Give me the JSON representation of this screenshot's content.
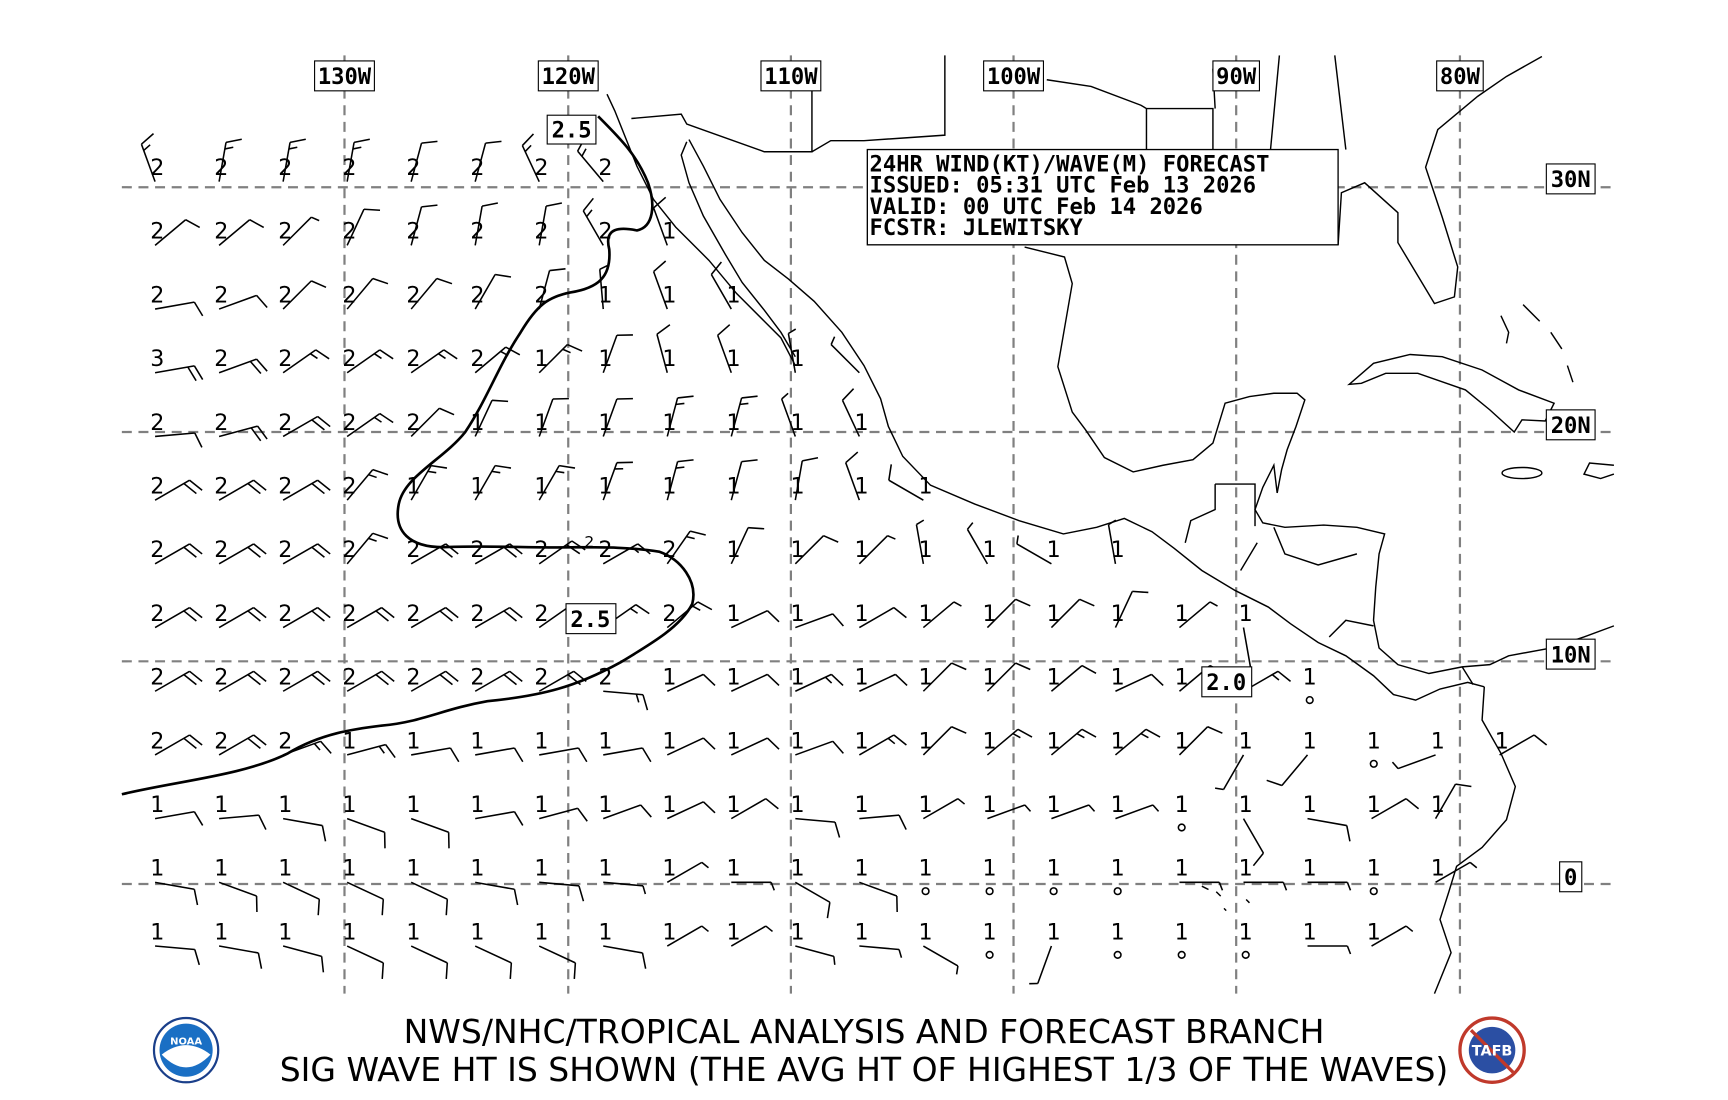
{
  "title_box": {
    "line1": "24HR WIND(KT)/WAVE(M) FORECAST",
    "line2": "ISSUED: 05:31 UTC Feb 13 2026",
    "line3": "VALID: 00 UTC Feb 14 2026",
    "line4": "FCSTR: JLEWITSKY"
  },
  "longitude_labels": [
    "130W",
    "120W",
    "110W",
    "100W",
    "90W",
    "80W"
  ],
  "latitude_labels": [
    "30N",
    "20N",
    "10N",
    "0"
  ],
  "contour_labels": [
    "2.5",
    "2.5",
    "2.0"
  ],
  "contour_small_label": "2",
  "footer": {
    "line1": "NWS/NHC/TROPICAL ANALYSIS AND FORECAST BRANCH",
    "line2": "SIG WAVE HT IS SHOWN (THE AVG HT OF HIGHEST 1/3 OF THE WAVES)"
  },
  "logos": {
    "left": "NOAA",
    "right": "TAFB"
  },
  "colors": {
    "grid": "#808080",
    "land": "#000000",
    "text": "#000000",
    "noaa_blue": "#1a6fc4",
    "tafb_red": "#c0392b"
  },
  "units": {
    "wind": "kt",
    "wave": "m"
  },
  "wave_heights": [
    [
      2,
      2,
      2,
      2,
      2,
      2,
      2,
      2
    ],
    [
      2,
      2,
      2,
      2,
      2,
      2,
      2,
      2,
      1
    ],
    [
      2,
      2,
      2,
      2,
      2,
      2,
      2,
      1,
      1,
      1
    ],
    [
      3,
      2,
      2,
      2,
      2,
      2,
      1,
      1,
      1,
      1,
      1
    ],
    [
      2,
      2,
      2,
      2,
      2,
      1,
      1,
      1,
      1,
      1,
      1,
      1
    ],
    [
      2,
      2,
      2,
      2,
      1,
      1,
      1,
      1,
      1,
      1,
      1,
      1,
      1
    ],
    [
      2,
      2,
      2,
      2,
      2,
      2,
      2,
      2,
      2,
      1,
      1,
      1,
      1,
      1,
      1,
      1
    ],
    [
      2,
      2,
      2,
      2,
      2,
      2,
      2,
      null,
      2,
      1,
      1,
      1,
      1,
      1,
      1,
      1,
      1,
      1
    ],
    [
      2,
      2,
      2,
      2,
      2,
      2,
      2,
      2,
      1,
      1,
      1,
      1,
      1,
      1,
      1,
      1,
      1,
      null,
      1
    ],
    [
      2,
      2,
      2,
      1,
      1,
      1,
      1,
      1,
      1,
      1,
      1,
      1,
      1,
      1,
      1,
      1,
      1,
      1,
      1,
      1,
      1,
      1
    ],
    [
      1,
      1,
      1,
      1,
      1,
      1,
      1,
      1,
      1,
      1,
      1,
      1,
      1,
      1,
      1,
      1,
      1,
      1,
      1,
      1,
      1
    ],
    [
      1,
      1,
      1,
      1,
      1,
      1,
      1,
      1,
      1,
      1,
      1,
      1,
      1,
      1,
      1,
      1,
      1,
      1,
      1,
      1,
      1
    ],
    [
      1,
      1,
      1,
      1,
      1,
      1,
      1,
      1,
      1,
      1,
      1,
      1,
      1,
      1,
      1,
      1,
      1,
      1,
      1,
      1
    ]
  ],
  "wind_barbs": [
    [
      [
        340,
        15
      ],
      [
        10,
        15
      ],
      [
        10,
        15
      ],
      [
        10,
        15
      ],
      [
        15,
        10
      ],
      [
        15,
        10
      ],
      [
        335,
        15
      ],
      [
        320,
        15
      ]
    ],
    [
      [
        50,
        10
      ],
      [
        50,
        10
      ],
      [
        45,
        5
      ],
      [
        25,
        10
      ],
      [
        15,
        10
      ],
      [
        10,
        10
      ],
      [
        10,
        10
      ],
      [
        330,
        15
      ],
      [
        340,
        10
      ]
    ],
    [
      [
        80,
        10
      ],
      [
        70,
        10
      ],
      [
        45,
        10
      ],
      [
        40,
        10
      ],
      [
        40,
        10
      ],
      [
        30,
        10
      ],
      [
        15,
        10
      ],
      [
        355,
        5
      ],
      [
        340,
        10
      ],
      [
        330,
        10
      ]
    ],
    [
      [
        80,
        20
      ],
      [
        70,
        20
      ],
      [
        55,
        15
      ],
      [
        55,
        15
      ],
      [
        55,
        15
      ],
      [
        50,
        15
      ],
      [
        45,
        15
      ],
      [
        20,
        10
      ],
      [
        345,
        10
      ],
      [
        340,
        10
      ],
      [
        350,
        5
      ],
      [
        315,
        5
      ]
    ],
    [
      [
        85,
        10
      ],
      [
        75,
        20
      ],
      [
        60,
        20
      ],
      [
        55,
        15
      ],
      [
        45,
        10
      ],
      [
        25,
        10
      ],
      [
        20,
        10
      ],
      [
        20,
        10
      ],
      [
        15,
        15
      ],
      [
        15,
        15
      ],
      [
        340,
        5
      ],
      [
        335,
        10
      ]
    ],
    [
      [
        60,
        20
      ],
      [
        60,
        20
      ],
      [
        60,
        20
      ],
      [
        40,
        15
      ],
      [
        30,
        15
      ],
      [
        30,
        15
      ],
      [
        30,
        15
      ],
      [
        20,
        15
      ],
      [
        15,
        15
      ],
      [
        15,
        10
      ],
      [
        10,
        10
      ],
      [
        340,
        10
      ],
      [
        300,
        10
      ]
    ],
    [
      [
        60,
        20
      ],
      [
        60,
        20
      ],
      [
        60,
        20
      ],
      [
        40,
        15
      ],
      [
        60,
        20
      ],
      [
        60,
        20
      ],
      [
        55,
        20
      ],
      [
        60,
        15
      ],
      [
        35,
        15
      ],
      [
        25,
        10
      ],
      [
        45,
        10
      ],
      [
        45,
        5
      ],
      [
        350,
        5
      ],
      [
        330,
        5
      ],
      [
        300,
        5
      ],
      [
        350,
        5
      ]
    ],
    [
      [
        60,
        20
      ],
      [
        60,
        20
      ],
      [
        60,
        20
      ],
      [
        60,
        20
      ],
      [
        60,
        20
      ],
      [
        60,
        20
      ],
      [
        55,
        20
      ],
      [
        55,
        15
      ],
      [
        50,
        15
      ],
      [
        65,
        10
      ],
      [
        70,
        10
      ],
      [
        60,
        10
      ],
      [
        50,
        5
      ],
      [
        45,
        10
      ],
      [
        45,
        10
      ],
      [
        25,
        10
      ],
      [
        50,
        5
      ],
      [
        170,
        5
      ]
    ],
    [
      [
        60,
        20
      ],
      [
        60,
        20
      ],
      [
        60,
        20
      ],
      [
        60,
        20
      ],
      [
        60,
        20
      ],
      [
        60,
        20
      ],
      [
        60,
        20
      ],
      [
        95,
        15
      ],
      [
        65,
        10
      ],
      [
        65,
        10
      ],
      [
        65,
        15
      ],
      [
        65,
        10
      ],
      [
        45,
        10
      ],
      [
        45,
        10
      ],
      [
        50,
        10
      ],
      [
        65,
        10
      ],
      [
        50,
        10
      ],
      [
        60,
        15
      ],
      [
        0,
        0
      ]
    ],
    [
      [
        60,
        20
      ],
      [
        60,
        20
      ],
      [
        70,
        15
      ],
      [
        75,
        15
      ],
      [
        80,
        10
      ],
      [
        80,
        10
      ],
      [
        80,
        10
      ],
      [
        80,
        10
      ],
      [
        65,
        10
      ],
      [
        65,
        10
      ],
      [
        70,
        10
      ],
      [
        60,
        15
      ],
      [
        45,
        10
      ],
      [
        50,
        15
      ],
      [
        50,
        15
      ],
      [
        50,
        15
      ],
      [
        45,
        10
      ],
      [
        210,
        5
      ],
      [
        220,
        10
      ],
      [
        0,
        0
      ],
      [
        250,
        5
      ],
      [
        60,
        10
      ]
    ],
    [
      [
        80,
        10
      ],
      [
        85,
        10
      ],
      [
        100,
        10
      ],
      [
        110,
        10
      ],
      [
        110,
        10
      ],
      [
        80,
        10
      ],
      [
        75,
        10
      ],
      [
        70,
        10
      ],
      [
        65,
        10
      ],
      [
        60,
        10
      ],
      [
        95,
        10
      ],
      [
        85,
        10
      ],
      [
        60,
        5
      ],
      [
        70,
        5
      ],
      [
        70,
        5
      ],
      [
        70,
        5
      ],
      [
        0,
        0
      ],
      [
        150,
        10
      ],
      [
        100,
        10
      ],
      [
        60,
        10
      ],
      [
        30,
        10
      ]
    ],
    [
      [
        100,
        10
      ],
      [
        110,
        10
      ],
      [
        115,
        10
      ],
      [
        115,
        10
      ],
      [
        115,
        10
      ],
      [
        100,
        10
      ],
      [
        95,
        10
      ],
      [
        95,
        5
      ],
      [
        60,
        5
      ],
      [
        90,
        5
      ],
      [
        120,
        10
      ],
      [
        110,
        10
      ],
      [
        0,
        0
      ],
      [
        0,
        0
      ],
      [
        0,
        0
      ],
      [
        0,
        0
      ],
      [
        90,
        5
      ],
      [
        90,
        5
      ],
      [
        90,
        5
      ],
      [
        0,
        0
      ],
      [
        60,
        5
      ]
    ],
    [
      [
        95,
        10
      ],
      [
        100,
        10
      ],
      [
        105,
        10
      ],
      [
        115,
        10
      ],
      [
        115,
        10
      ],
      [
        115,
        10
      ],
      [
        115,
        10
      ],
      [
        100,
        10
      ],
      [
        60,
        5
      ],
      [
        60,
        5
      ],
      [
        105,
        5
      ],
      [
        95,
        5
      ],
      [
        120,
        5
      ],
      [
        0,
        0
      ],
      [
        200,
        5
      ],
      [
        0,
        0
      ],
      [
        0,
        0
      ],
      [
        0,
        0
      ],
      [
        90,
        5
      ],
      [
        60,
        5
      ]
    ]
  ]
}
